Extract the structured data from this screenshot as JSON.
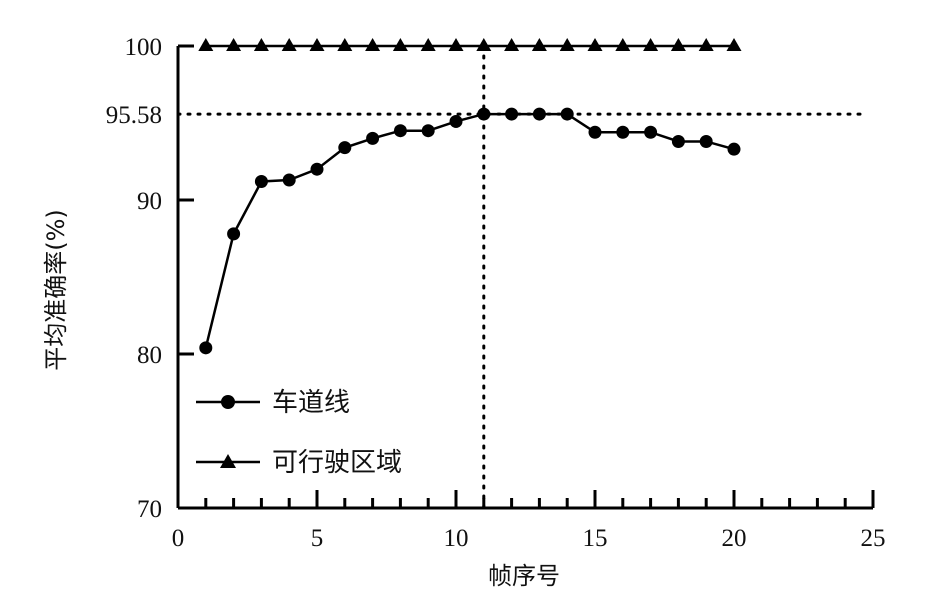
{
  "chart_data": {
    "type": "line",
    "xlabel": "帧序号",
    "ylabel": "平均准确率(%)",
    "xlim": [
      0,
      25
    ],
    "ylim": [
      70,
      100
    ],
    "x_ticks": [
      "0",
      "5",
      "10",
      "15",
      "20",
      "25"
    ],
    "y_ticks": [
      {
        "value": 70,
        "label": "70"
      },
      {
        "value": 80,
        "label": "80"
      },
      {
        "value": 90,
        "label": "90"
      },
      {
        "value": 95.58,
        "label": "95.58"
      },
      {
        "value": 100,
        "label": "100"
      }
    ],
    "reference_lines": {
      "vertical_x": 11,
      "horizontal_y": 95.58
    },
    "legend_position": "lower-left",
    "grid": false,
    "series": [
      {
        "name": "车道线",
        "marker": "circle",
        "x": [
          1,
          2,
          3,
          4,
          5,
          6,
          7,
          8,
          9,
          10,
          11,
          12,
          13,
          14,
          15,
          16,
          17,
          18,
          19,
          20
        ],
        "values": [
          80.4,
          87.8,
          91.2,
          91.3,
          92,
          93.4,
          94,
          94.5,
          94.5,
          95.1,
          95.58,
          95.58,
          95.58,
          95.58,
          94.4,
          94.4,
          94.4,
          93.8,
          93.8,
          93.3
        ]
      },
      {
        "name": "可行驶区域",
        "marker": "triangle",
        "x": [
          1,
          2,
          3,
          4,
          5,
          6,
          7,
          8,
          9,
          10,
          11,
          12,
          13,
          14,
          15,
          16,
          17,
          18,
          19,
          20
        ],
        "values": [
          100,
          100,
          100,
          100,
          100,
          100,
          100,
          100,
          100,
          100,
          100,
          100,
          100,
          100,
          100,
          100,
          100,
          100,
          100,
          100
        ]
      }
    ]
  }
}
